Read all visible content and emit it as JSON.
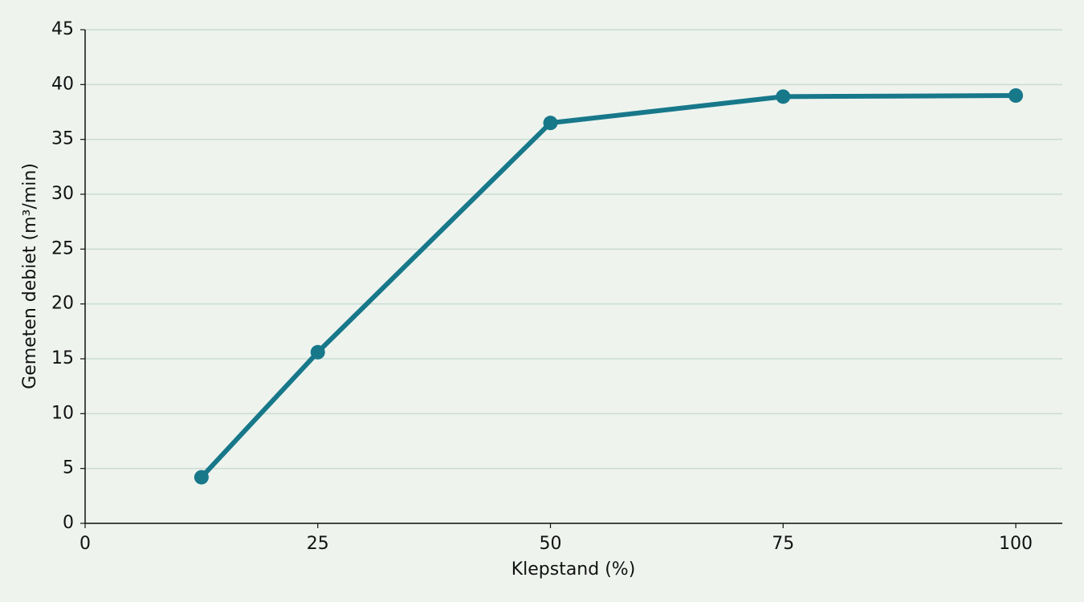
{
  "chart_data": {
    "type": "line",
    "x_label": "Klepstand (%)",
    "y_label": "Gemeten debiet (m³/min)",
    "x": [
      12.5,
      25,
      50,
      75,
      100
    ],
    "series": [
      {
        "color": "#17788a",
        "values": [
          4.2,
          15.6,
          36.5,
          38.9,
          39.0
        ]
      }
    ],
    "xlim": [
      0,
      105
    ],
    "xticks": [
      0,
      25,
      50,
      75,
      100
    ],
    "ylim": [
      0,
      45
    ],
    "yticks": [
      0,
      5,
      10,
      15,
      20,
      25,
      30,
      35,
      40,
      45
    ],
    "grid": true
  }
}
